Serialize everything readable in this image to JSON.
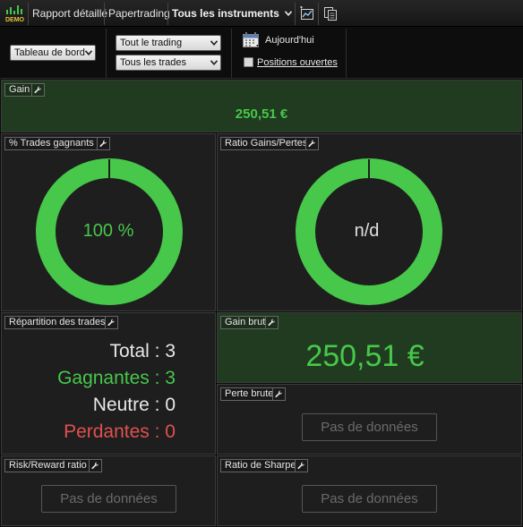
{
  "topbar": {
    "logo_text": "DEMO",
    "detailed_report": "Rapport détaillé",
    "account": "Papertrading",
    "instruments": "Tous les instruments"
  },
  "filters": {
    "dashboard_select": "Tableau de bord",
    "trading_select": "Tout le trading",
    "trades_select": "Tous les trades",
    "today": "Aujourd'hui",
    "open_positions": "Positions ouvertes",
    "open_positions_checked": false
  },
  "panels": {
    "gain": {
      "title": "Gain",
      "value": "250,51 €"
    },
    "win_rate": {
      "title": "% Trades gagnants",
      "label": "100 %",
      "fraction": 1.0
    },
    "profit_loss_ratio": {
      "title": "Ratio Gains/Pertes",
      "label": "n/d",
      "fraction": 1.0
    },
    "trade_breakdown": {
      "title": "Répartition des trades",
      "total": "Total : 3",
      "winners": "Gagnantes : 3",
      "neutral": "Neutre : 0",
      "losers": "Perdantes : 0"
    },
    "gross_gain": {
      "title": "Gain brut",
      "value": "250,51 €"
    },
    "gross_loss": {
      "title": "Perte brute",
      "no_data": "Pas de données"
    },
    "risk_reward": {
      "title": "Risk/Reward ratio",
      "no_data": "Pas de données"
    },
    "sharpe": {
      "title": "Ratio de Sharpe",
      "no_data": "Pas de données"
    }
  },
  "colors": {
    "positive": "#47c84a",
    "negative": "#e05050",
    "neutral": "#e8e8e8",
    "positive_panel": "#203b20",
    "panel": "#1e1e1e"
  }
}
